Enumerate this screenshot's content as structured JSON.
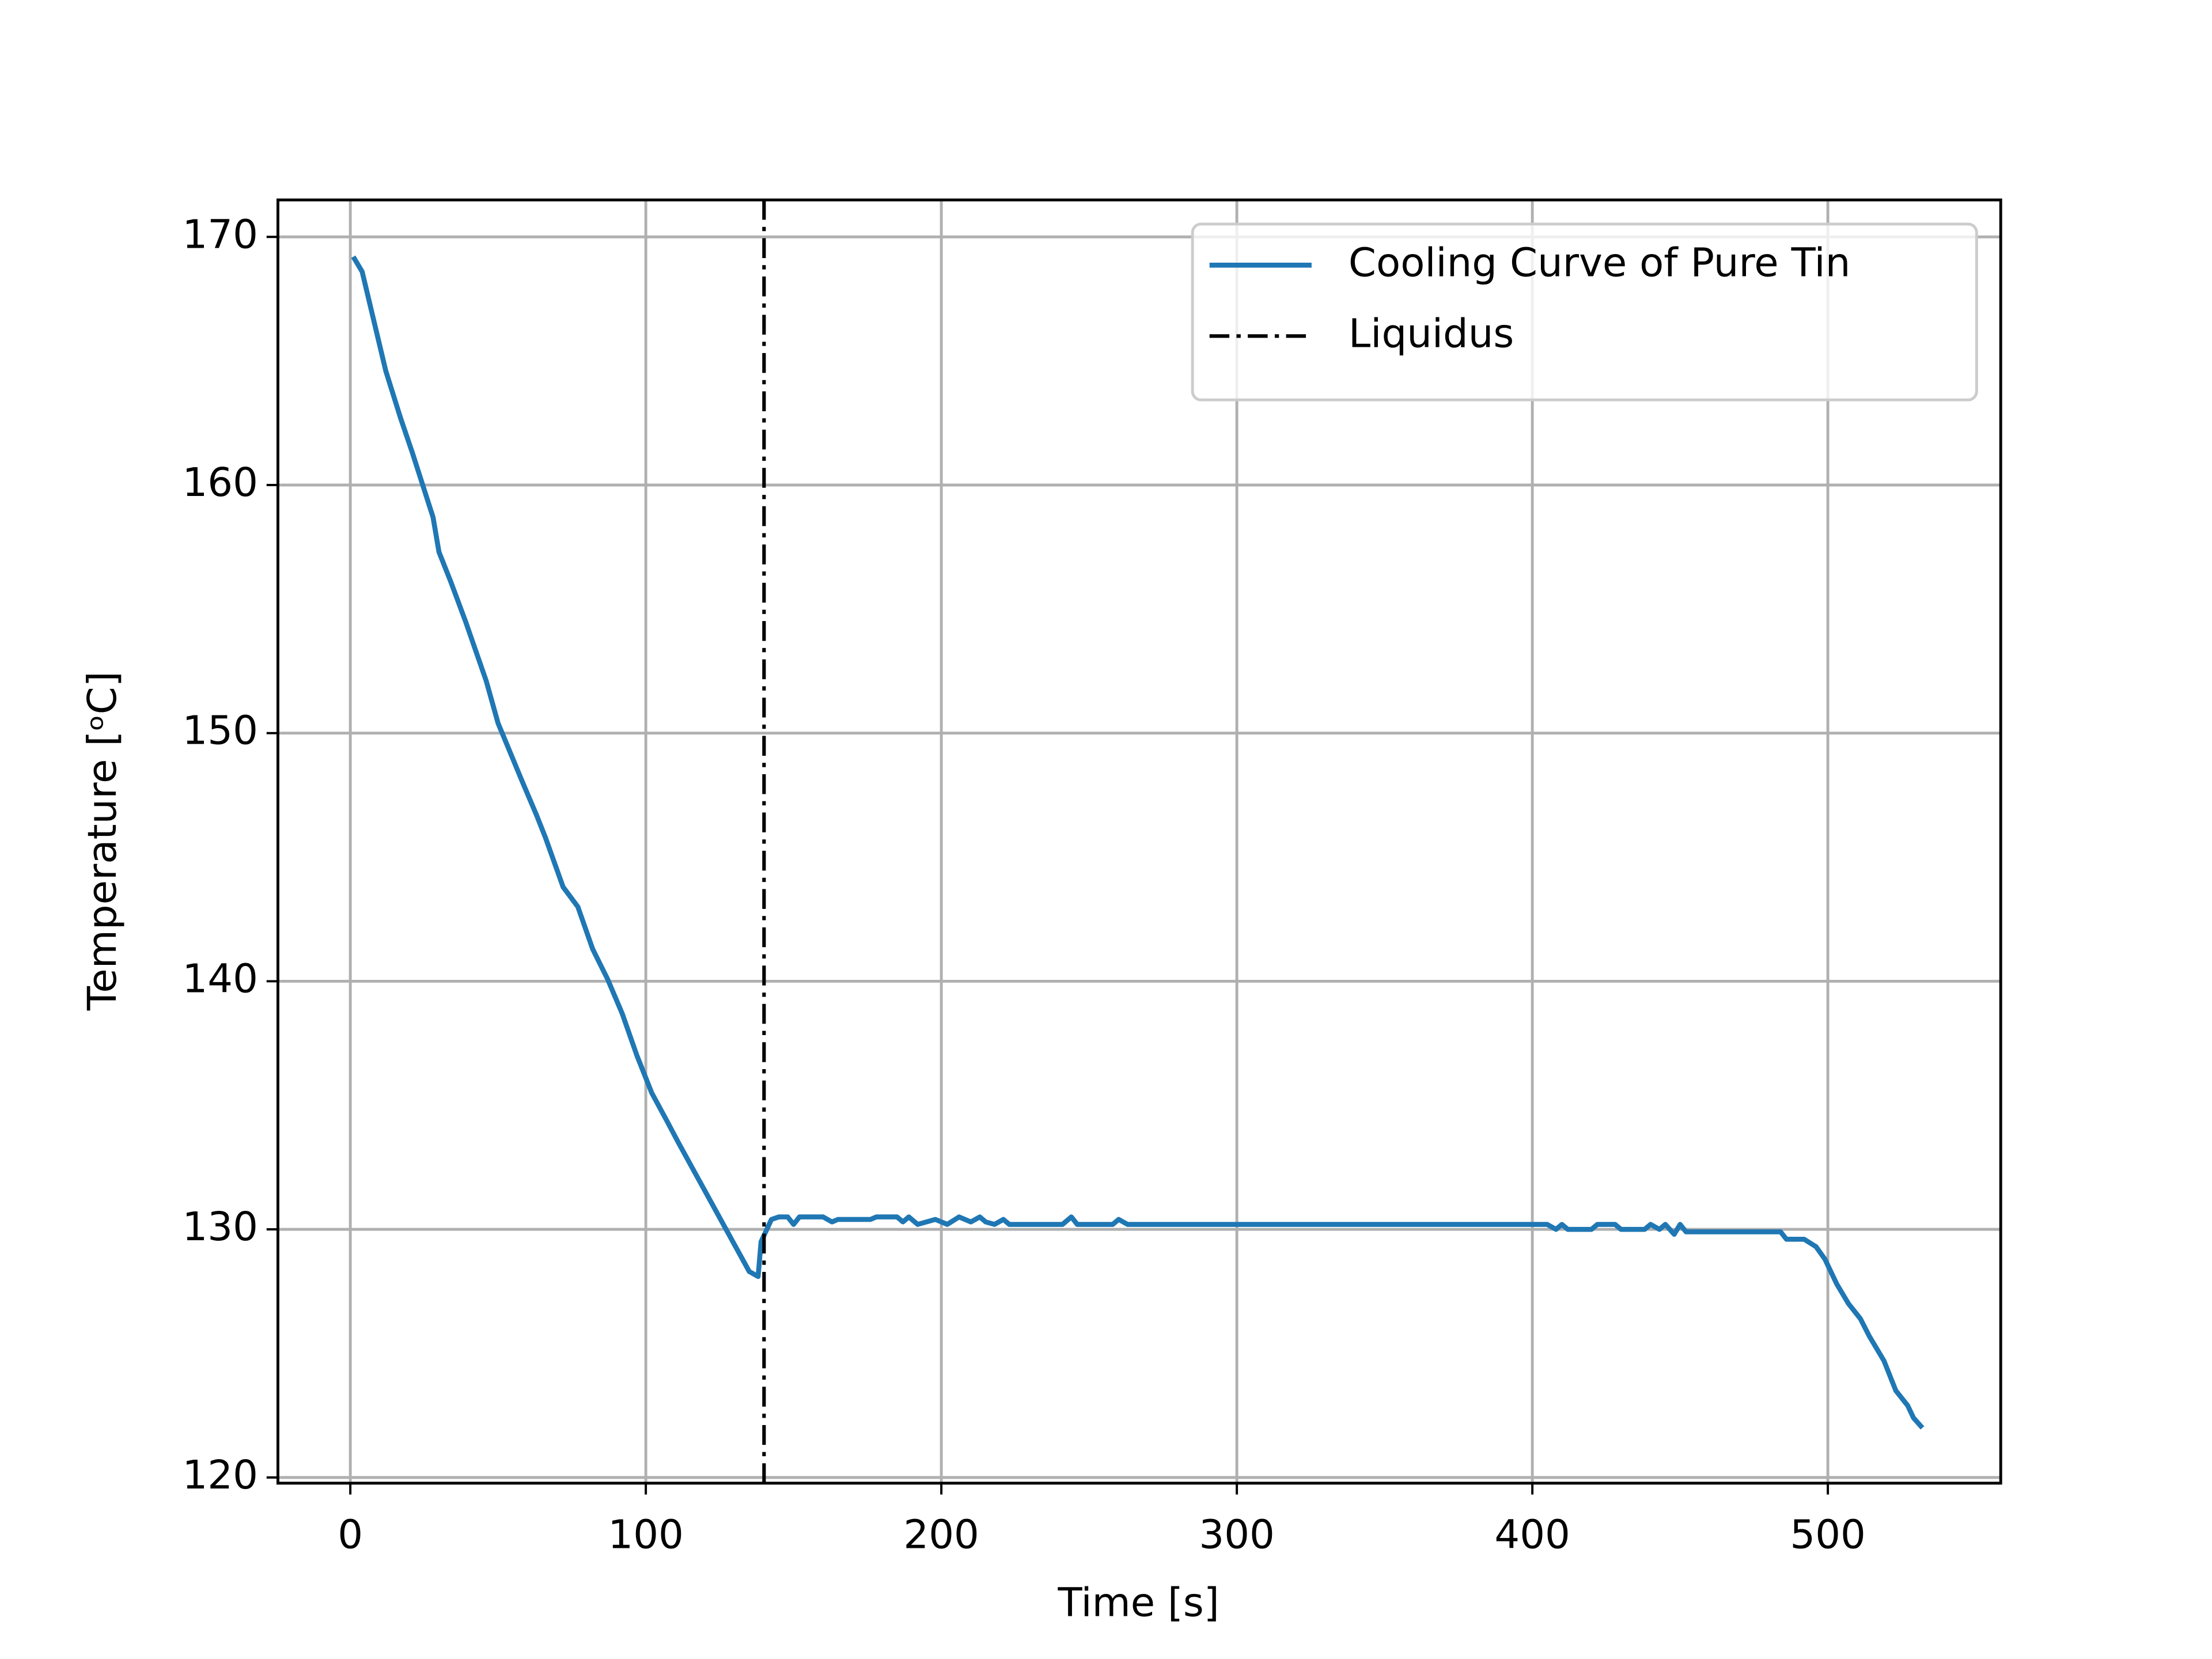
{
  "chart_data": {
    "type": "line",
    "xlabel": "Time   [s]",
    "ylabel": "Temperature   [ᵒC]",
    "xlim": [
      -24.5,
      558.5
    ],
    "ylim": [
      119.77,
      171.49
    ],
    "xticks": [
      0,
      100,
      200,
      300,
      400,
      500
    ],
    "yticks": [
      120,
      130,
      140,
      150,
      160,
      170
    ],
    "grid": true,
    "legend": "upper right",
    "series": [
      {
        "name": "Cooling Curve of Pure Tin",
        "color": "#1f77b4",
        "x": [
          1,
          4,
          9,
          12,
          17,
          21,
          28,
          30,
          34,
          39,
          46,
          50,
          58,
          63,
          66,
          72,
          77,
          82,
          87,
          92,
          97,
          102,
          107,
          111,
          135,
          138,
          139,
          142.5,
          145,
          148,
          150,
          152,
          160,
          163,
          165,
          176,
          178,
          185,
          187,
          189,
          192,
          198,
          202,
          206,
          210,
          213,
          215,
          218,
          221,
          223,
          241,
          244,
          246,
          258,
          260,
          263,
          405,
          408,
          410,
          412,
          420,
          422,
          428,
          430,
          438,
          440,
          443,
          445,
          448,
          450,
          452,
          484,
          486,
          492,
          496,
          499,
          503,
          507,
          511,
          514,
          519,
          523,
          527,
          529,
          532
        ],
        "values": [
          169.2,
          168.6,
          166.1,
          164.6,
          162.7,
          161.3,
          158.7,
          157.3,
          156.1,
          154.5,
          152.1,
          150.4,
          148.1,
          146.7,
          145.8,
          143.8,
          143.0,
          141.3,
          140.1,
          138.7,
          137.0,
          135.5,
          134.4,
          133.5,
          128.3,
          128.1,
          129.5,
          130.4,
          130.5,
          130.5,
          130.2,
          130.5,
          130.5,
          130.3,
          130.4,
          130.4,
          130.5,
          130.5,
          130.3,
          130.5,
          130.2,
          130.4,
          130.2,
          130.5,
          130.3,
          130.5,
          130.3,
          130.2,
          130.4,
          130.2,
          130.2,
          130.5,
          130.2,
          130.2,
          130.4,
          130.2,
          130.2,
          130.0,
          130.2,
          130.0,
          130.0,
          130.2,
          130.2,
          130.0,
          130.0,
          130.2,
          130.0,
          130.2,
          129.8,
          130.2,
          129.9,
          129.9,
          129.6,
          129.6,
          129.3,
          128.8,
          127.8,
          127.0,
          126.4,
          125.7,
          124.7,
          123.5,
          122.9,
          122.4,
          122.0
        ]
      }
    ],
    "vline": {
      "name": "Liquidus",
      "x": 140,
      "color": "#000000"
    }
  }
}
